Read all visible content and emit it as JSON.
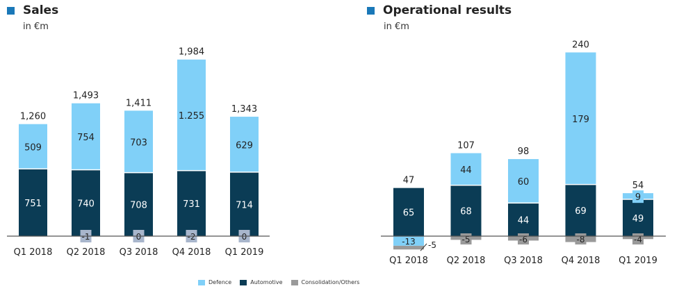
{
  "colors": {
    "Defence": "#80d0f8",
    "Automotive": "#0b3c55",
    "Consolidation/Others": "#9a9a9a",
    "title_marker": "#1a78b8",
    "small_label_box": "#a8b6cc"
  },
  "legend": [
    "Defence",
    "Automotive",
    "Consolidation/Others"
  ],
  "chart_data": [
    {
      "type": "bar",
      "stacked": true,
      "title": "Sales",
      "subtitle": "in €m",
      "categories": [
        "Q1 2018",
        "Q2 2018",
        "Q3 2018",
        "Q4 2018",
        "Q1 2019"
      ],
      "series": [
        {
          "name": "Automotive",
          "values": [
            751,
            740,
            708,
            731,
            714
          ],
          "labels": [
            "751",
            "740",
            "708",
            "731",
            "714"
          ]
        },
        {
          "name": "Defence",
          "values": [
            509,
            754,
            703,
            1255,
            629
          ],
          "labels": [
            "509",
            "754",
            "703",
            "1.255",
            "629"
          ]
        },
        {
          "name": "Consolidation/Others",
          "values": [
            null,
            -1,
            0,
            -2,
            0
          ],
          "labels": [
            "",
            "-1",
            "0",
            "-2",
            "0"
          ]
        }
      ],
      "totals": [
        "1,260",
        "1,493",
        "1,411",
        "1,984",
        "1,343"
      ]
    },
    {
      "type": "bar",
      "stacked": true,
      "title": "Operational results",
      "subtitle": "in €m",
      "categories": [
        "Q1 2018",
        "Q2 2018",
        "Q3 2018",
        "Q4 2018",
        "Q1 2019"
      ],
      "series": [
        {
          "name": "Automotive",
          "values": [
            65,
            68,
            44,
            69,
            49
          ],
          "labels": [
            "65",
            "68",
            "44",
            "69",
            "49"
          ]
        },
        {
          "name": "Defence",
          "values": [
            -13,
            44,
            60,
            179,
            9
          ],
          "labels": [
            "-13",
            "44",
            "60",
            "179",
            "9"
          ]
        },
        {
          "name": "Consolidation/Others",
          "values": [
            -5,
            -5,
            -6,
            -8,
            -4
          ],
          "labels": [
            "-5",
            "-5",
            "-6",
            "-8",
            "-4"
          ]
        }
      ],
      "totals": [
        "47",
        "107",
        "98",
        "240",
        "54"
      ]
    }
  ]
}
